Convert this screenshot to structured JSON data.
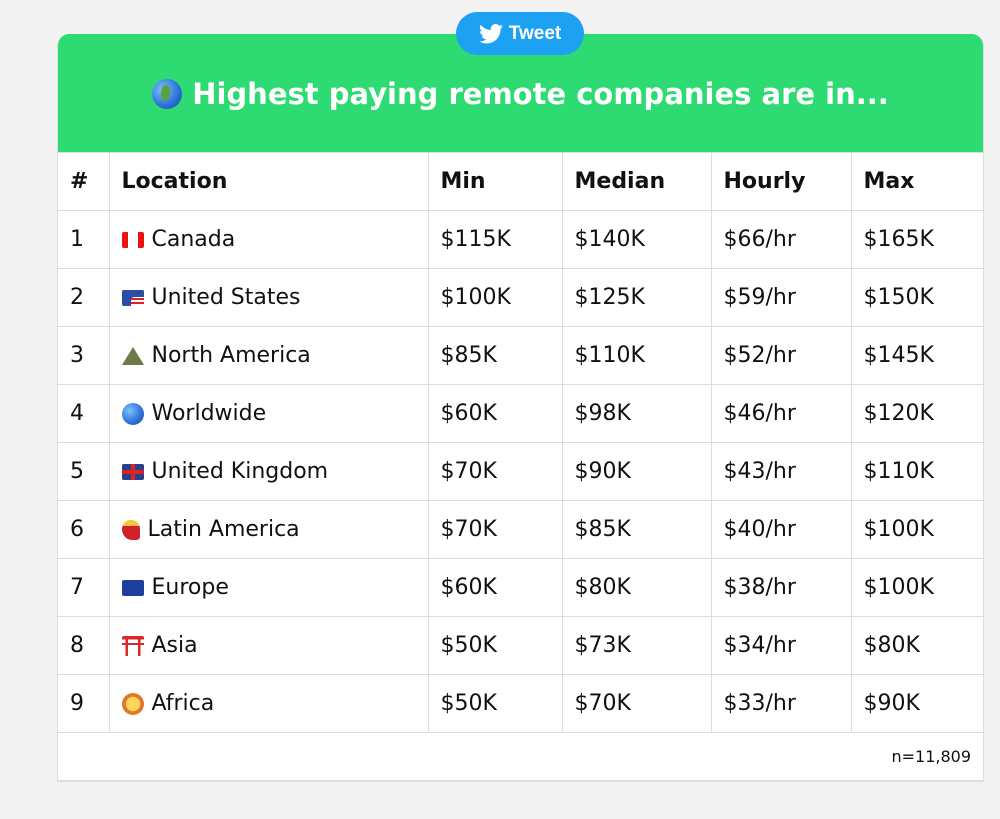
{
  "tweet_button": {
    "label": "Tweet",
    "icon": "twitter-bird-icon",
    "color": "#1da1f2"
  },
  "banner": {
    "title": "Highest paying remote companies are in...",
    "icon": "globe-americas-icon",
    "color": "#2edb72"
  },
  "table": {
    "headers": [
      "#",
      "Location",
      "Min",
      "Median",
      "Hourly",
      "Max"
    ],
    "rows": [
      {
        "rank": "1",
        "icon": "canada-flag-icon",
        "location": "Canada",
        "min": "$115K",
        "median": "$140K",
        "hourly": "$66/hr",
        "max": "$165K"
      },
      {
        "rank": "2",
        "icon": "us-flag-icon",
        "location": "United States",
        "min": "$100K",
        "median": "$125K",
        "hourly": "$59/hr",
        "max": "$150K"
      },
      {
        "rank": "3",
        "icon": "mountain-icon",
        "location": "North America",
        "min": "$85K",
        "median": "$110K",
        "hourly": "$52/hr",
        "max": "$145K"
      },
      {
        "rank": "4",
        "icon": "globe-icon",
        "location": "Worldwide",
        "min": "$60K",
        "median": "$98K",
        "hourly": "$46/hr",
        "max": "$120K"
      },
      {
        "rank": "5",
        "icon": "uk-flag-icon",
        "location": "United Kingdom",
        "min": "$70K",
        "median": "$90K",
        "hourly": "$43/hr",
        "max": "$110K"
      },
      {
        "rank": "6",
        "icon": "dancer-icon",
        "location": "Latin America",
        "min": "$70K",
        "median": "$85K",
        "hourly": "$40/hr",
        "max": "$100K"
      },
      {
        "rank": "7",
        "icon": "eu-flag-icon",
        "location": "Europe",
        "min": "$60K",
        "median": "$80K",
        "hourly": "$38/hr",
        "max": "$100K"
      },
      {
        "rank": "8",
        "icon": "torii-gate-icon",
        "location": "Asia",
        "min": "$50K",
        "median": "$73K",
        "hourly": "$34/hr",
        "max": "$80K"
      },
      {
        "rank": "9",
        "icon": "lion-icon",
        "location": "Africa",
        "min": "$50K",
        "median": "$70K",
        "hourly": "$33/hr",
        "max": "$90K"
      }
    ],
    "footer": "n=11,809"
  }
}
